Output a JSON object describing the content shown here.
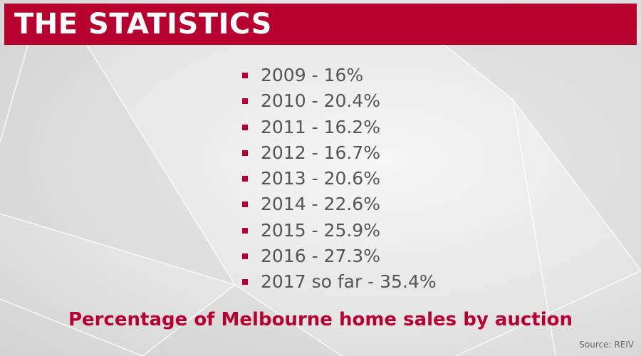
{
  "header": {
    "title": "THE STATISTICS"
  },
  "list": {
    "items": [
      "2009 - 16%",
      "2010 - 20.4%",
      "2011 - 16.2%",
      "2012 - 16.7%",
      "2013 - 20.6%",
      "2014 - 22.6%",
      "2015 - 25.9%",
      "2016 - 27.3%",
      "2017 so far - 35.4%"
    ]
  },
  "caption": "Percentage of Melbourne home sales by auction",
  "source": "Source: REIV"
}
